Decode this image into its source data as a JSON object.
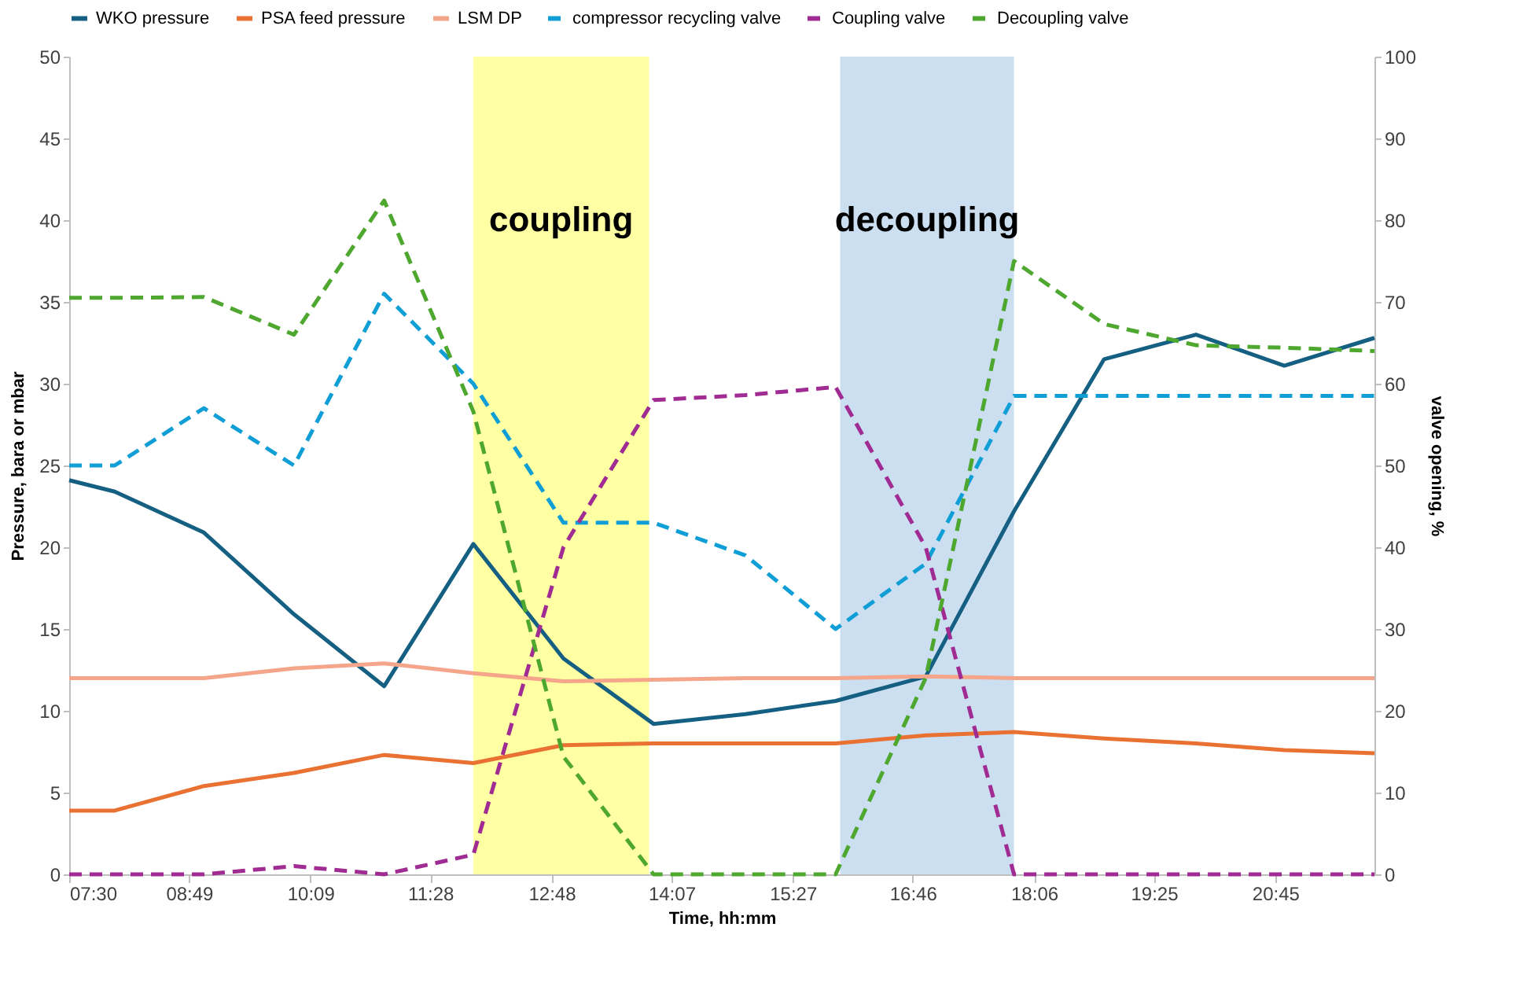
{
  "chart_data": {
    "type": "line",
    "xlabel": "Time, hh:mm",
    "ylabel": "Pressure, bara or mbar",
    "y2label": "valve opening, %",
    "x": [
      7.5,
      8.0,
      8.98,
      9.97,
      10.96,
      11.94,
      12.93,
      13.92,
      14.93,
      15.92,
      16.91,
      17.88,
      18.87,
      19.88,
      20.85,
      21.84
    ],
    "xlim": [
      7.5,
      21.84
    ],
    "xticks": [
      {
        "value": 7.5,
        "label": "07:30"
      },
      {
        "value": 8.8167,
        "label": "08:49"
      },
      {
        "value": 10.15,
        "label": "10:09"
      },
      {
        "value": 11.4667,
        "label": "11:28"
      },
      {
        "value": 12.8,
        "label": "12:48"
      },
      {
        "value": 14.1167,
        "label": "14:07"
      },
      {
        "value": 15.45,
        "label": "15:27"
      },
      {
        "value": 16.7667,
        "label": "16:46"
      },
      {
        "value": 18.1,
        "label": "18:06"
      },
      {
        "value": 19.4167,
        "label": "19:25"
      },
      {
        "value": 20.75,
        "label": "20:45"
      }
    ],
    "ylim": [
      0,
      50
    ],
    "yticks": [
      0,
      5,
      10,
      15,
      20,
      25,
      30,
      35,
      40,
      45,
      50
    ],
    "y2lim": [
      0,
      100
    ],
    "y2ticks": [
      0,
      10,
      20,
      30,
      40,
      50,
      60,
      70,
      80,
      90,
      100
    ],
    "grid": false,
    "legend": "top",
    "marker": "none",
    "series": [
      {
        "name": "WKO pressure",
        "color": "#156082",
        "line_style": "solid",
        "values": [
          24.1,
          23.4,
          20.9,
          15.9,
          11.5,
          20.2,
          13.2,
          9.2,
          9.8,
          10.6,
          12.1,
          22.2,
          31.5,
          33.0,
          31.1,
          32.8
        ]
      },
      {
        "name": "PSA feed pressure",
        "color": "#e97132",
        "line_style": "solid",
        "values": [
          3.9,
          3.9,
          5.4,
          6.2,
          7.3,
          6.8,
          7.9,
          8.0,
          8.0,
          8.0,
          8.5,
          8.7,
          8.3,
          8.0,
          7.6,
          7.4
        ]
      },
      {
        "name": "LSM DP",
        "color": "#f4a58a",
        "line_style": "solid",
        "values": [
          12.0,
          12.0,
          12.0,
          12.6,
          12.9,
          12.3,
          11.8,
          11.9,
          12.0,
          12.0,
          12.1,
          12.0,
          12.0,
          12.0,
          12.0,
          12.0
        ]
      },
      {
        "name": "compressor recycling valve",
        "color": "#0f9ed5",
        "line_style": "dashed",
        "axis": "y2",
        "values": [
          50,
          50,
          57,
          50,
          71,
          60,
          43,
          43,
          39,
          30,
          38,
          58.5,
          58.5,
          58.5,
          58.5,
          58.5
        ]
      },
      {
        "name": "Coupling valve",
        "color": "#a02b93",
        "line_style": "dashed",
        "axis": "y2",
        "values": [
          0,
          0,
          0,
          1,
          0,
          2.4,
          40,
          58,
          58.6,
          59.6,
          40,
          0,
          0,
          0,
          0,
          0
        ]
      },
      {
        "name": "Decoupling valve",
        "color": "#4ea72e",
        "line_style": "dashed",
        "axis": "y2",
        "values": [
          70.5,
          70.5,
          70.6,
          66,
          82.4,
          56.6,
          14.4,
          0,
          0,
          0,
          24,
          75,
          67.3,
          64.7,
          64.4,
          64
        ]
      }
    ],
    "bands": [
      {
        "axis": "x",
        "from": 11.94,
        "to": 13.87,
        "label": "coupling",
        "color": "#ffff99"
      },
      {
        "axis": "x",
        "from": 15.97,
        "to": 17.88,
        "label": "decoupling",
        "color": "#c6dcef"
      }
    ]
  }
}
